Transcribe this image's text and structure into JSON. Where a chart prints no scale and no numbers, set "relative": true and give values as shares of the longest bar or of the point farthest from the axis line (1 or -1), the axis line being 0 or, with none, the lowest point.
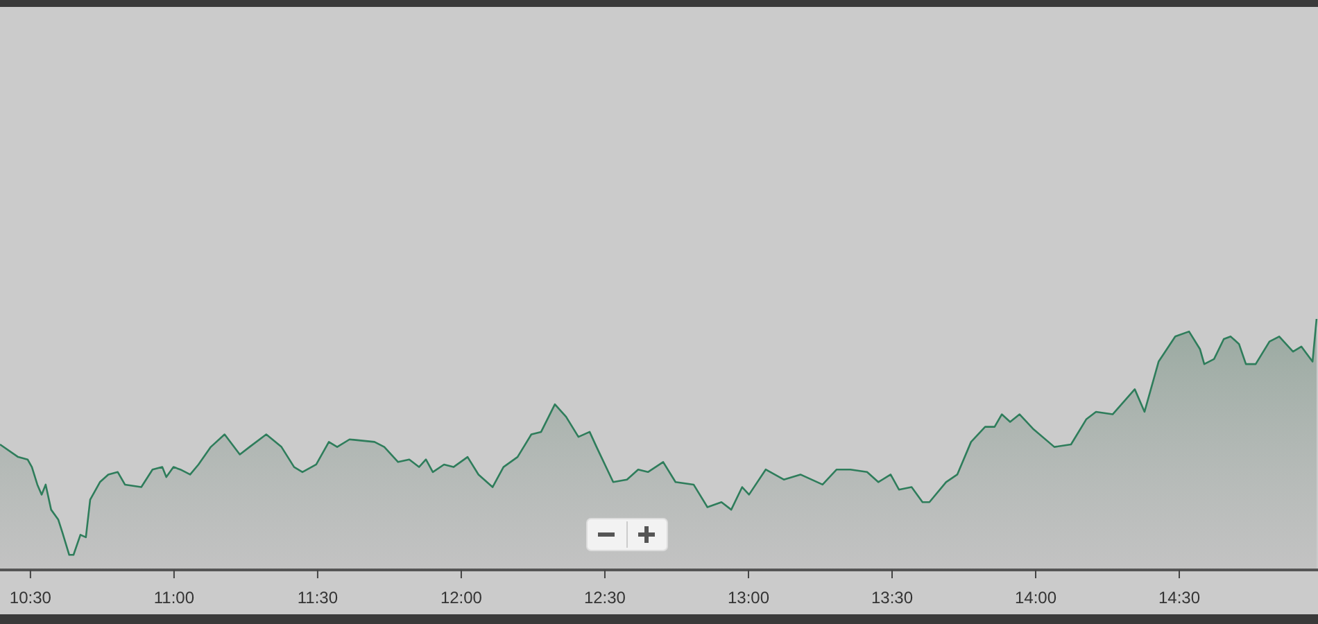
{
  "chart_data": {
    "type": "area",
    "relative": true,
    "color": "#2e7d5b",
    "x": [
      10.394,
      10.457,
      10.49,
      10.505,
      10.524,
      10.539,
      10.553,
      10.572,
      10.597,
      10.611,
      10.635,
      10.65,
      10.674,
      10.693,
      10.708,
      10.742,
      10.771,
      10.804,
      10.829,
      10.886,
      10.925,
      10.959,
      10.973,
      10.998,
      11.022,
      11.056,
      11.085,
      11.128,
      11.176,
      11.229,
      11.263,
      11.321,
      11.374,
      11.418,
      11.447,
      11.495,
      11.539,
      11.568,
      11.611,
      11.698,
      11.732,
      11.78,
      11.819,
      11.853,
      11.877,
      11.901,
      11.94,
      11.973,
      12.022,
      12.06,
      12.109,
      12.147,
      12.196,
      12.244,
      12.278,
      12.326,
      12.365,
      12.408,
      12.447,
      12.471,
      12.529,
      12.577,
      12.616,
      12.65,
      12.703,
      12.746,
      12.809,
      12.857,
      12.906,
      12.94,
      12.978,
      13.002,
      13.06,
      13.123,
      13.181,
      13.258,
      13.307,
      13.355,
      13.413,
      13.452,
      13.495,
      13.524,
      13.568,
      13.606,
      13.63,
      13.688,
      13.727,
      13.775,
      13.824,
      13.857,
      13.882,
      13.911,
      13.944,
      13.993,
      14.065,
      14.123,
      14.176,
      14.21,
      14.268,
      14.345,
      14.379,
      14.428,
      14.486,
      14.534,
      14.572,
      14.587,
      14.621,
      14.655,
      14.679,
      14.708,
      14.732,
      14.766,
      14.814,
      14.848,
      14.896,
      14.925,
      14.964,
      14.978
    ],
    "values": [
      0.5,
      0.45,
      0.44,
      0.41,
      0.34,
      0.3,
      0.34,
      0.24,
      0.2,
      0.15,
      0.06,
      0.06,
      0.14,
      0.13,
      0.28,
      0.35,
      0.38,
      0.39,
      0.34,
      0.33,
      0.4,
      0.41,
      0.37,
      0.41,
      0.4,
      0.38,
      0.42,
      0.49,
      0.54,
      0.46,
      0.49,
      0.54,
      0.49,
      0.41,
      0.39,
      0.42,
      0.51,
      0.49,
      0.52,
      0.51,
      0.49,
      0.43,
      0.44,
      0.41,
      0.44,
      0.39,
      0.42,
      0.41,
      0.45,
      0.38,
      0.33,
      0.41,
      0.45,
      0.54,
      0.55,
      0.66,
      0.61,
      0.53,
      0.55,
      0.49,
      0.35,
      0.36,
      0.4,
      0.39,
      0.43,
      0.35,
      0.34,
      0.25,
      0.27,
      0.24,
      0.33,
      0.3,
      0.4,
      0.36,
      0.38,
      0.34,
      0.4,
      0.4,
      0.39,
      0.35,
      0.38,
      0.32,
      0.33,
      0.27,
      0.27,
      0.35,
      0.38,
      0.51,
      0.57,
      0.57,
      0.62,
      0.59,
      0.62,
      0.56,
      0.49,
      0.5,
      0.6,
      0.63,
      0.62,
      0.72,
      0.63,
      0.83,
      0.93,
      0.95,
      0.88,
      0.82,
      0.84,
      0.92,
      0.93,
      0.9,
      0.82,
      0.82,
      0.91,
      0.93,
      0.87,
      0.89,
      0.83,
      1
    ],
    "xlim": [
      10.394,
      14.983
    ],
    "xticks": [
      {
        "value": 10.5,
        "label": "10:30"
      },
      {
        "value": 11,
        "label": "11:00"
      },
      {
        "value": 11.5,
        "label": "11:30"
      },
      {
        "value": 12,
        "label": "12:00"
      },
      {
        "value": 12.5,
        "label": "12:30"
      },
      {
        "value": 13,
        "label": "13:00"
      },
      {
        "value": 13.5,
        "label": "13:30"
      },
      {
        "value": 14,
        "label": "14:00"
      },
      {
        "value": 14.5,
        "label": "14:30"
      }
    ],
    "grid": false,
    "marker": "none",
    "line_style": "solid"
  }
}
